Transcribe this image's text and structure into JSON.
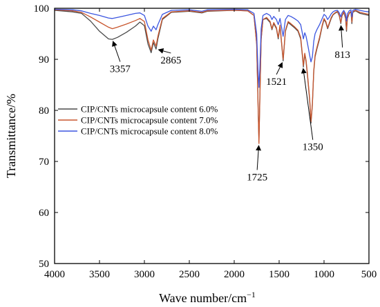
{
  "chart_data": {
    "type": "line",
    "xlabel": "Wave number/cm",
    "xlabel_sup": "−1",
    "ylabel": "Transmittance/%",
    "xlim": [
      4000,
      500
    ],
    "ylim": [
      50,
      100
    ],
    "x_reversed": true,
    "xticks": [
      "4000",
      "3500",
      "3000",
      "2500",
      "2000",
      "1500",
      "1000",
      "500"
    ],
    "yticks": [
      "50",
      "60",
      "70",
      "80",
      "90",
      "100"
    ],
    "grid": false,
    "legend_position": "middle-left",
    "series": [
      {
        "name": "CIP/CNTs microcapsule content 6.0%",
        "color": "#4a4a4a",
        "points": [
          [
            4000,
            99.6
          ],
          [
            3800,
            99.3
          ],
          [
            3700,
            99.0
          ],
          [
            3600,
            97.5
          ],
          [
            3500,
            95.5
          ],
          [
            3400,
            94.0
          ],
          [
            3357,
            93.9
          ],
          [
            3300,
            94.3
          ],
          [
            3200,
            95.3
          ],
          [
            3100,
            96.5
          ],
          [
            3050,
            97.3
          ],
          [
            3000,
            96.6
          ],
          [
            2960,
            93.0
          ],
          [
            2925,
            91.3
          ],
          [
            2900,
            93.3
          ],
          [
            2870,
            92.0
          ],
          [
            2850,
            94.0
          ],
          [
            2800,
            97.8
          ],
          [
            2700,
            99.2
          ],
          [
            2500,
            99.4
          ],
          [
            2360,
            99.1
          ],
          [
            2300,
            99.4
          ],
          [
            2000,
            99.6
          ],
          [
            1850,
            99.5
          ],
          [
            1780,
            98.6
          ],
          [
            1750,
            93.0
          ],
          [
            1735,
            82.0
          ],
          [
            1725,
            73.8
          ],
          [
            1715,
            82.0
          ],
          [
            1700,
            94.0
          ],
          [
            1680,
            97.8
          ],
          [
            1640,
            98.0
          ],
          [
            1600,
            97.2
          ],
          [
            1580,
            95.8
          ],
          [
            1560,
            97.0
          ],
          [
            1530,
            96.0
          ],
          [
            1510,
            94.0
          ],
          [
            1490,
            96.5
          ],
          [
            1455,
            89.7
          ],
          [
            1430,
            95.5
          ],
          [
            1400,
            97.2
          ],
          [
            1370,
            96.8
          ],
          [
            1330,
            96.2
          ],
          [
            1290,
            95.5
          ],
          [
            1260,
            94.0
          ],
          [
            1240,
            90.5
          ],
          [
            1230,
            88.5
          ],
          [
            1215,
            91.0
          ],
          [
            1200,
            89.5
          ],
          [
            1185,
            87.0
          ],
          [
            1160,
            82.0
          ],
          [
            1145,
            77.5
          ],
          [
            1130,
            81.0
          ],
          [
            1115,
            87.5
          ],
          [
            1100,
            90.5
          ],
          [
            1080,
            92.0
          ],
          [
            1050,
            94.0
          ],
          [
            1020,
            96.5
          ],
          [
            1000,
            97.8
          ],
          [
            980,
            97.2
          ],
          [
            960,
            96.0
          ],
          [
            940,
            97.0
          ],
          [
            920,
            98.0
          ],
          [
            900,
            98.7
          ],
          [
            880,
            99.0
          ],
          [
            850,
            99.3
          ],
          [
            830,
            98.5
          ],
          [
            813,
            97.0
          ],
          [
            800,
            98.5
          ],
          [
            780,
            99.2
          ],
          [
            760,
            98.0
          ],
          [
            750,
            95.5
          ],
          [
            740,
            98.0
          ],
          [
            720,
            99.0
          ],
          [
            700,
            99.3
          ],
          [
            690,
            97.0
          ],
          [
            680,
            99.2
          ],
          [
            650,
            99.5
          ],
          [
            600,
            99.0
          ],
          [
            550,
            98.8
          ],
          [
            500,
            98.6
          ]
        ]
      },
      {
        "name": "CIP/CNTs microcapsule content 7.0%",
        "color": "#c8552d",
        "points": [
          [
            4000,
            99.7
          ],
          [
            3800,
            99.5
          ],
          [
            3700,
            99.2
          ],
          [
            3600,
            98.3
          ],
          [
            3500,
            97.3
          ],
          [
            3400,
            96.3
          ],
          [
            3357,
            96.0
          ],
          [
            3300,
            96.3
          ],
          [
            3200,
            96.9
          ],
          [
            3100,
            97.6
          ],
          [
            3050,
            98.0
          ],
          [
            3000,
            97.4
          ],
          [
            2960,
            93.8
          ],
          [
            2925,
            91.8
          ],
          [
            2900,
            93.8
          ],
          [
            2870,
            92.6
          ],
          [
            2850,
            94.5
          ],
          [
            2800,
            98.0
          ],
          [
            2700,
            99.3
          ],
          [
            2500,
            99.5
          ],
          [
            2360,
            99.2
          ],
          [
            2300,
            99.5
          ],
          [
            2000,
            99.6
          ],
          [
            1850,
            99.5
          ],
          [
            1780,
            98.6
          ],
          [
            1750,
            93.0
          ],
          [
            1735,
            81.5
          ],
          [
            1725,
            73.5
          ],
          [
            1715,
            81.5
          ],
          [
            1700,
            94.0
          ],
          [
            1680,
            97.8
          ],
          [
            1640,
            98.2
          ],
          [
            1600,
            97.4
          ],
          [
            1580,
            96.0
          ],
          [
            1560,
            97.2
          ],
          [
            1530,
            96.2
          ],
          [
            1510,
            94.3
          ],
          [
            1490,
            96.7
          ],
          [
            1455,
            90.0
          ],
          [
            1430,
            95.7
          ],
          [
            1400,
            97.4
          ],
          [
            1370,
            97.0
          ],
          [
            1330,
            96.4
          ],
          [
            1290,
            95.7
          ],
          [
            1260,
            94.3
          ],
          [
            1240,
            90.8
          ],
          [
            1230,
            88.8
          ],
          [
            1215,
            91.2
          ],
          [
            1200,
            89.8
          ],
          [
            1185,
            87.3
          ],
          [
            1160,
            82.3
          ],
          [
            1145,
            77.8
          ],
          [
            1130,
            81.3
          ],
          [
            1115,
            87.8
          ],
          [
            1100,
            90.8
          ],
          [
            1080,
            92.3
          ],
          [
            1050,
            94.3
          ],
          [
            1020,
            96.7
          ],
          [
            1000,
            98.0
          ],
          [
            980,
            97.4
          ],
          [
            960,
            96.2
          ],
          [
            940,
            97.2
          ],
          [
            920,
            98.2
          ],
          [
            900,
            98.8
          ],
          [
            880,
            99.1
          ],
          [
            850,
            99.4
          ],
          [
            830,
            98.6
          ],
          [
            813,
            97.2
          ],
          [
            800,
            98.6
          ],
          [
            780,
            99.3
          ],
          [
            760,
            98.2
          ],
          [
            750,
            95.8
          ],
          [
            740,
            98.2
          ],
          [
            720,
            99.1
          ],
          [
            700,
            99.4
          ],
          [
            690,
            97.3
          ],
          [
            680,
            99.3
          ],
          [
            650,
            99.6
          ],
          [
            600,
            99.2
          ],
          [
            550,
            99.0
          ],
          [
            500,
            98.8
          ]
        ]
      },
      {
        "name": "CIP/CNTs microcapsule content 8.0%",
        "color": "#3b55e0",
        "points": [
          [
            4000,
            99.8
          ],
          [
            3800,
            99.7
          ],
          [
            3700,
            99.5
          ],
          [
            3600,
            99.0
          ],
          [
            3500,
            98.6
          ],
          [
            3400,
            98.1
          ],
          [
            3357,
            98.0
          ],
          [
            3300,
            98.2
          ],
          [
            3200,
            98.6
          ],
          [
            3100,
            99.0
          ],
          [
            3050,
            99.1
          ],
          [
            3000,
            98.6
          ],
          [
            2960,
            96.5
          ],
          [
            2925,
            95.5
          ],
          [
            2900,
            96.5
          ],
          [
            2870,
            95.8
          ],
          [
            2850,
            96.8
          ],
          [
            2800,
            98.8
          ],
          [
            2700,
            99.6
          ],
          [
            2500,
            99.7
          ],
          [
            2360,
            99.4
          ],
          [
            2300,
            99.7
          ],
          [
            2000,
            99.8
          ],
          [
            1850,
            99.7
          ],
          [
            1780,
            99.0
          ],
          [
            1750,
            95.0
          ],
          [
            1735,
            88.0
          ],
          [
            1725,
            84.5
          ],
          [
            1715,
            88.0
          ],
          [
            1700,
            96.0
          ],
          [
            1680,
            98.6
          ],
          [
            1640,
            99.0
          ],
          [
            1600,
            98.6
          ],
          [
            1580,
            97.8
          ],
          [
            1560,
            98.4
          ],
          [
            1530,
            97.8
          ],
          [
            1510,
            96.8
          ],
          [
            1490,
            98.0
          ],
          [
            1455,
            94.5
          ],
          [
            1430,
            97.8
          ],
          [
            1400,
            98.6
          ],
          [
            1370,
            98.4
          ],
          [
            1330,
            98.0
          ],
          [
            1290,
            97.5
          ],
          [
            1260,
            96.8
          ],
          [
            1240,
            95.0
          ],
          [
            1230,
            94.0
          ],
          [
            1215,
            95.2
          ],
          [
            1200,
            94.5
          ],
          [
            1185,
            93.2
          ],
          [
            1160,
            90.8
          ],
          [
            1145,
            89.5
          ],
          [
            1130,
            90.5
          ],
          [
            1115,
            93.5
          ],
          [
            1100,
            95.0
          ],
          [
            1080,
            95.8
          ],
          [
            1050,
            96.8
          ],
          [
            1020,
            98.0
          ],
          [
            1000,
            98.8
          ],
          [
            980,
            98.5
          ],
          [
            960,
            97.8
          ],
          [
            940,
            98.3
          ],
          [
            920,
            98.9
          ],
          [
            900,
            99.3
          ],
          [
            880,
            99.5
          ],
          [
            850,
            99.6
          ],
          [
            830,
            99.1
          ],
          [
            813,
            98.3
          ],
          [
            800,
            99.1
          ],
          [
            780,
            99.6
          ],
          [
            760,
            98.9
          ],
          [
            750,
            97.5
          ],
          [
            740,
            98.9
          ],
          [
            720,
            99.5
          ],
          [
            700,
            99.7
          ],
          [
            690,
            98.3
          ],
          [
            680,
            99.6
          ],
          [
            650,
            99.8
          ],
          [
            600,
            99.6
          ],
          [
            550,
            99.4
          ],
          [
            500,
            99.3
          ]
        ]
      }
    ],
    "annotations": [
      {
        "label": "3357",
        "x": 3357,
        "y": 93.9,
        "text_x": 3270,
        "text_y": 87.5
      },
      {
        "label": "2865",
        "x": 2865,
        "y": 92.0,
        "text_x": 2705,
        "text_y": 89.2
      },
      {
        "label": "1725",
        "x": 1725,
        "y": 73.5,
        "text_x": 1745,
        "text_y": 66.3
      },
      {
        "label": "1521",
        "x": 1455,
        "y": 89.7,
        "text_x": 1530,
        "text_y": 85.0
      },
      {
        "label": "1350",
        "x": 1235,
        "y": 88.6,
        "text_x": 1125,
        "text_y": 72.2
      },
      {
        "label": "813",
        "x": 813,
        "y": 97.0,
        "text_x": 795,
        "text_y": 90.3
      }
    ]
  }
}
